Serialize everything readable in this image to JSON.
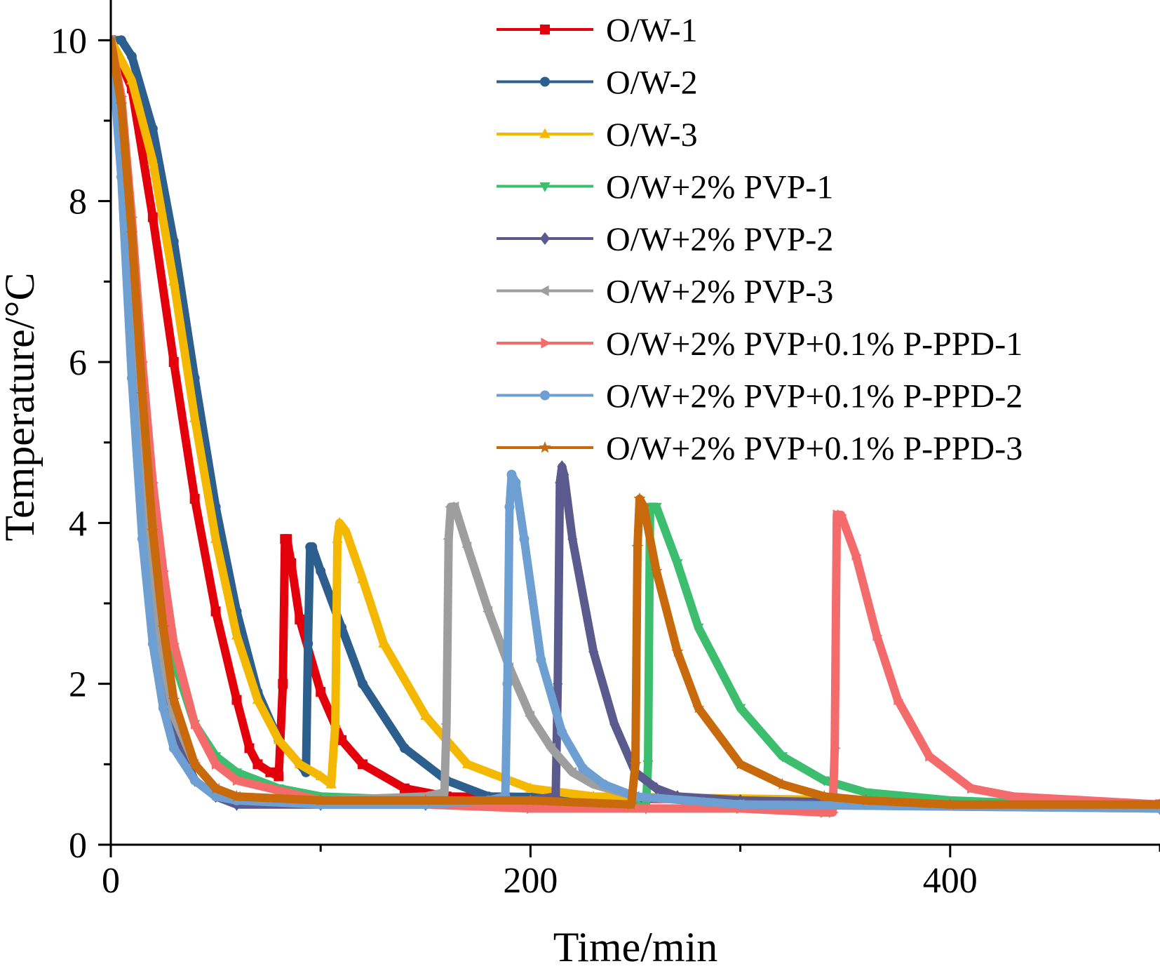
{
  "chart_data": {
    "type": "line",
    "xlabel": "Time/min",
    "ylabel": "Temperature/°C",
    "xlim": [
      0,
      500
    ],
    "ylim": [
      0,
      10.5
    ],
    "xticks": [
      0,
      200,
      400
    ],
    "yticks": [
      0,
      2,
      4,
      6,
      8,
      10
    ],
    "grid": false,
    "legend_position": "top-right",
    "series": [
      {
        "name": "O/W-1",
        "color": "#E3000B",
        "marker": "square",
        "x": [
          0,
          10,
          20,
          30,
          40,
          50,
          60,
          66,
          70,
          76,
          80,
          82,
          83,
          84,
          86,
          90,
          100,
          110,
          120,
          140,
          160,
          500
        ],
        "y": [
          10.0,
          9.4,
          7.8,
          6.0,
          4.3,
          2.9,
          1.8,
          1.2,
          1.0,
          0.9,
          0.85,
          2.0,
          3.8,
          3.8,
          3.5,
          2.8,
          1.9,
          1.3,
          1.0,
          0.7,
          0.6,
          0.5
        ]
      },
      {
        "name": "O/W-2",
        "color": "#2D5F8E",
        "marker": "circle",
        "x": [
          0,
          5,
          10,
          20,
          30,
          40,
          50,
          60,
          70,
          80,
          90,
          93,
          94,
          95,
          96,
          100,
          110,
          120,
          140,
          160,
          180,
          500
        ],
        "y": [
          10.0,
          10.0,
          9.8,
          8.9,
          7.5,
          5.8,
          4.2,
          2.9,
          1.9,
          1.3,
          1.0,
          0.9,
          2.5,
          3.7,
          3.7,
          3.4,
          2.7,
          2.0,
          1.2,
          0.8,
          0.6,
          0.5
        ]
      },
      {
        "name": "O/W-3",
        "color": "#F5B800",
        "marker": "triangle-up",
        "x": [
          0,
          10,
          20,
          30,
          40,
          50,
          60,
          70,
          80,
          90,
          100,
          105,
          107,
          108,
          109,
          112,
          120,
          130,
          150,
          170,
          200,
          230,
          500
        ],
        "y": [
          10.0,
          9.5,
          8.5,
          7.0,
          5.3,
          3.8,
          2.6,
          1.8,
          1.3,
          1.0,
          0.85,
          0.75,
          1.5,
          3.8,
          4.0,
          3.9,
          3.3,
          2.5,
          1.6,
          1.0,
          0.7,
          0.6,
          0.5
        ]
      },
      {
        "name": "O/W+2% PVP-1",
        "color": "#3CBE6E",
        "marker": "triangle-down",
        "x": [
          0,
          5,
          10,
          15,
          20,
          25,
          30,
          40,
          50,
          60,
          80,
          100,
          150,
          200,
          250,
          255,
          256,
          257,
          260,
          270,
          280,
          300,
          320,
          340,
          360,
          400,
          500
        ],
        "y": [
          10.0,
          9.0,
          7.3,
          5.5,
          4.0,
          3.0,
          2.3,
          1.5,
          1.1,
          0.9,
          0.7,
          0.6,
          0.55,
          0.5,
          0.5,
          0.45,
          1.0,
          4.2,
          4.2,
          3.5,
          2.7,
          1.7,
          1.1,
          0.8,
          0.65,
          0.55,
          0.45
        ]
      },
      {
        "name": "O/W+2% PVP-2",
        "color": "#5B5A8F",
        "marker": "diamond",
        "x": [
          0,
          5,
          10,
          15,
          20,
          25,
          30,
          40,
          50,
          60,
          100,
          150,
          200,
          212,
          213,
          214,
          215,
          216,
          220,
          230,
          240,
          250,
          260,
          270,
          300,
          500
        ],
        "y": [
          10.0,
          8.7,
          6.5,
          4.5,
          3.0,
          2.0,
          1.4,
          0.8,
          0.6,
          0.5,
          0.5,
          0.5,
          0.55,
          0.6,
          2.0,
          4.5,
          4.7,
          4.6,
          3.8,
          2.4,
          1.5,
          0.9,
          0.7,
          0.6,
          0.55,
          0.45
        ]
      },
      {
        "name": "O/W+2% PVP-3",
        "color": "#9E9E9E",
        "marker": "triangle-left",
        "x": [
          0,
          5,
          10,
          15,
          20,
          25,
          30,
          40,
          50,
          60,
          100,
          150,
          159,
          160,
          161,
          162,
          164,
          170,
          180,
          190,
          200,
          210,
          220,
          230,
          250,
          300,
          500
        ],
        "y": [
          10.0,
          8.8,
          6.8,
          4.8,
          3.3,
          2.3,
          1.6,
          1.0,
          0.7,
          0.6,
          0.55,
          0.6,
          0.65,
          1.5,
          3.8,
          4.2,
          4.2,
          3.7,
          2.9,
          2.2,
          1.6,
          1.2,
          0.9,
          0.75,
          0.6,
          0.5,
          0.45
        ]
      },
      {
        "name": "O/W+2% PVP+0.1% P-PPD-1",
        "color": "#F36B6B",
        "marker": "triangle-right",
        "x": [
          0,
          5,
          10,
          15,
          20,
          25,
          30,
          40,
          50,
          60,
          100,
          200,
          300,
          340,
          344,
          345,
          346,
          348,
          355,
          365,
          375,
          390,
          410,
          430,
          500
        ],
        "y": [
          10.0,
          9.3,
          7.8,
          6.0,
          4.5,
          3.4,
          2.5,
          1.5,
          1.0,
          0.8,
          0.55,
          0.45,
          0.45,
          0.4,
          0.4,
          1.2,
          4.1,
          4.1,
          3.6,
          2.6,
          1.8,
          1.1,
          0.7,
          0.6,
          0.5
        ]
      },
      {
        "name": "O/W+2% PVP+0.1% P-PPD-2",
        "color": "#6D9FD2",
        "marker": "circle",
        "x": [
          0,
          5,
          10,
          15,
          20,
          25,
          30,
          40,
          50,
          60,
          100,
          150,
          180,
          188,
          189,
          190,
          191,
          193,
          197,
          205,
          215,
          225,
          235,
          250,
          300,
          500
        ],
        "y": [
          10.0,
          8.3,
          5.8,
          3.8,
          2.5,
          1.7,
          1.2,
          0.8,
          0.6,
          0.55,
          0.5,
          0.5,
          0.55,
          0.6,
          2.0,
          4.2,
          4.6,
          4.5,
          3.8,
          2.3,
          1.4,
          0.95,
          0.75,
          0.6,
          0.5,
          0.45
        ]
      },
      {
        "name": "O/W+2% PVP+0.1% P-PPD-3",
        "color": "#C8690C",
        "marker": "star",
        "x": [
          0,
          5,
          10,
          15,
          20,
          25,
          30,
          40,
          50,
          60,
          100,
          150,
          200,
          248,
          250,
          251,
          252,
          254,
          260,
          270,
          280,
          300,
          320,
          340,
          360,
          400,
          500
        ],
        "y": [
          10.0,
          9.2,
          7.6,
          5.6,
          3.9,
          2.7,
          1.8,
          1.0,
          0.7,
          0.6,
          0.55,
          0.55,
          0.55,
          0.5,
          1.0,
          3.7,
          4.3,
          4.2,
          3.4,
          2.4,
          1.7,
          1.0,
          0.75,
          0.6,
          0.55,
          0.5,
          0.5
        ]
      }
    ]
  }
}
